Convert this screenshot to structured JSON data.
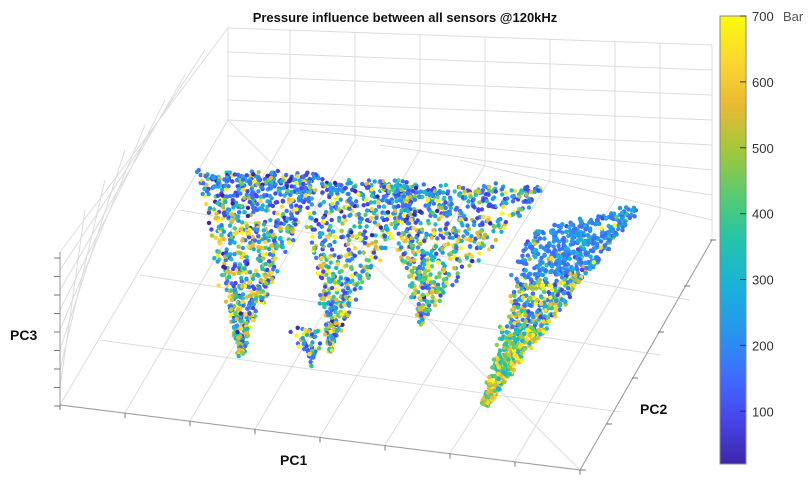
{
  "chart_data": {
    "type": "scatter",
    "title": "Pressure influence between all sensors @120kHz",
    "xlabel": "PC1",
    "ylabel": "PC2",
    "zlabel": "PC3",
    "colorbar": {
      "ticks": [
        100,
        200,
        300,
        400,
        500,
        600,
        700
      ],
      "unit": "Bar",
      "range": [
        20,
        700
      ],
      "colormap": "parula"
    },
    "grid": true,
    "clusters": [
      {
        "name": "",
        "description": "cluster A cone"
      },
      {
        "name": "",
        "description": "cluster B cone"
      },
      {
        "name": "",
        "description": "cluster C cone"
      },
      {
        "name": "",
        "description": "cluster D dense cone"
      }
    ]
  },
  "colors": {
    "parula": [
      "#3e26a8",
      "#4746eb",
      "#3e6fff",
      "#2797eb",
      "#1ab2d9",
      "#24c3aa",
      "#58cc6f",
      "#a3c73a",
      "#e8ba33",
      "#fcd82e",
      "#f9fb0e"
    ]
  }
}
